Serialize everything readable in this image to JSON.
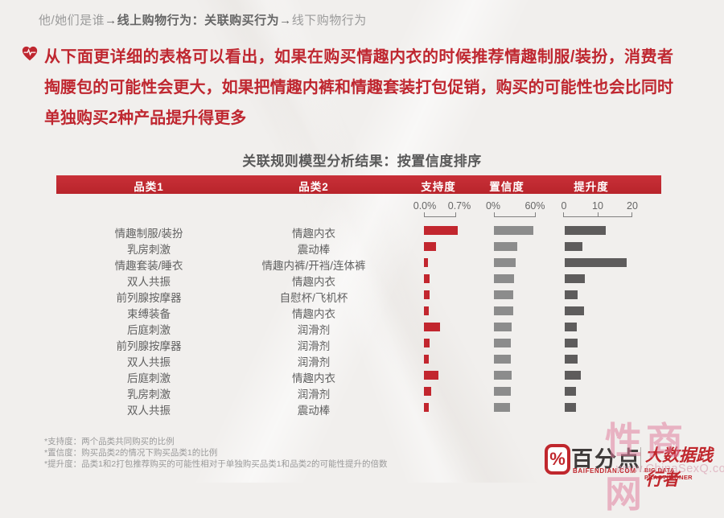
{
  "breadcrumb": {
    "prefix": "他/她们是谁",
    "highlight": "→线上购物行为：关联购买行为→",
    "suffix": "线下购物行为"
  },
  "intro": {
    "text": "从下面更详细的表格可以看出，如果在购买情趣内衣的时候推荐情趣制服/装扮，消费者掏腰包的可能性会更大，如果把情趣内裤和情趣套装打包促销，购买的可能性也会比同时单独购买2种产品提升得更多"
  },
  "chart_data": {
    "type": "bar",
    "title": "关联规则模型分析结果：按置信度排序",
    "columns": [
      "品类1",
      "品类2",
      "支持度",
      "置信度",
      "提升度"
    ],
    "legend_position": "none",
    "grid": false,
    "axes": {
      "support": {
        "label": "支持度",
        "ticks": [
          "0.0%",
          "0.7%"
        ],
        "min": 0,
        "max": 0.7,
        "unit": "%"
      },
      "confidence": {
        "label": "置信度",
        "ticks": [
          "0%",
          "60%"
        ],
        "min": 0,
        "max": 60,
        "unit": "%"
      },
      "lift": {
        "label": "提升度",
        "ticks": [
          "0",
          "10",
          "20"
        ],
        "min": 0,
        "max": 20,
        "unit": ""
      }
    },
    "rows": [
      {
        "cat1": "情趣制服/装扮",
        "cat2": "情趣内衣",
        "support": 0.75,
        "confidence": 56,
        "lift": 11.8
      },
      {
        "cat1": "乳房刺激",
        "cat2": "震动棒",
        "support": 0.27,
        "confidence": 33,
        "lift": 5.1
      },
      {
        "cat1": "情趣套装/睡衣",
        "cat2": "情趣内裤/开裆/连体裤",
        "support": 0.08,
        "confidence": 31,
        "lift": 18
      },
      {
        "cat1": "双人共振",
        "cat2": "情趣内衣",
        "support": 0.13,
        "confidence": 29,
        "lift": 5.7
      },
      {
        "cat1": "前列腺按摩器",
        "cat2": "自慰杯/飞机杯",
        "support": 0.13,
        "confidence": 28,
        "lift": 3.7
      },
      {
        "cat1": "束缚装备",
        "cat2": "情趣内衣",
        "support": 0.1,
        "confidence": 27.5,
        "lift": 5.5
      },
      {
        "cat1": "后庭刺激",
        "cat2": "润滑剂",
        "support": 0.36,
        "confidence": 25,
        "lift": 3.5
      },
      {
        "cat1": "前列腺按摩器",
        "cat2": "润滑剂",
        "support": 0.12,
        "confidence": 24,
        "lift": 3.7
      },
      {
        "cat1": "双人共振",
        "cat2": "润滑剂",
        "support": 0.1,
        "confidence": 24,
        "lift": 3.7
      },
      {
        "cat1": "后庭刺激",
        "cat2": "情趣内衣",
        "support": 0.33,
        "confidence": 25,
        "lift": 4.7
      },
      {
        "cat1": "乳房刺激",
        "cat2": "润滑剂",
        "support": 0.16,
        "confidence": 24,
        "lift": 3.3
      },
      {
        "cat1": "双人共振",
        "cat2": "震动棒",
        "support": 0.1,
        "confidence": 23,
        "lift": 3.3
      }
    ]
  },
  "footnotes": [
    "*支持度：两个品类共同购买的比例",
    "*置信度：购买品类2的情况下购买品类1的比例",
    "*提升度：品类1和2打包推荐购买的可能性相对于单独购买品类1和品类2的可能性提升的倍数"
  ],
  "branding": {
    "percent_symbol": "%",
    "name_cn": "百分点",
    "domain": "BAIFENDIAN.COM",
    "slogan_cn": "大数据践行者",
    "slogan_en": "BIG DATA PRACTITIONER"
  },
  "watermark": {
    "text": "性商网",
    "url": "www.ChinaSexQ.com"
  },
  "colors": {
    "accent_red": "#bf2730",
    "header_red": "#bd272e",
    "bar_red": "#c2262e",
    "bar_gray": "#8c8c8c",
    "bar_dark": "#5e5c5c",
    "watermark_pink": "#e0809e"
  }
}
